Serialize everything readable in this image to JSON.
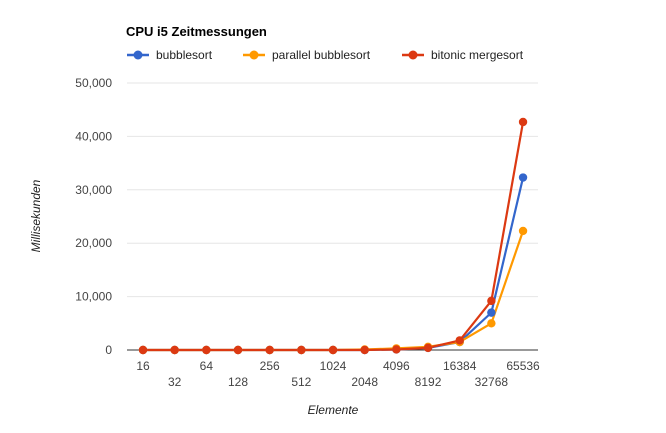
{
  "chart_data": {
    "type": "line",
    "title": "CPU i5 Zeitmessungen",
    "xlabel": "Elemente",
    "ylabel": "Millisekunden",
    "categories": [
      "16",
      "32",
      "64",
      "128",
      "256",
      "512",
      "1024",
      "2048",
      "4096",
      "8192",
      "16384",
      "32768",
      "65536"
    ],
    "ylim": [
      0,
      50000
    ],
    "yticks": [
      0,
      10000,
      20000,
      30000,
      40000,
      50000
    ],
    "ytick_labels": [
      "0",
      "10,000",
      "20,000",
      "30,000",
      "40,000",
      "50,000"
    ],
    "grid": true,
    "legend_position": "top",
    "series": [
      {
        "name": "bubblesort",
        "color": "#3366cc",
        "values": [
          0,
          0,
          0,
          0,
          0,
          0,
          0,
          0,
          100,
          400,
          1500,
          7000,
          32300
        ]
      },
      {
        "name": "parallel bubblesort",
        "color": "#ff9900",
        "values": [
          0,
          0,
          0,
          0,
          0,
          0,
          0,
          100,
          300,
          600,
          1500,
          5000,
          22300
        ]
      },
      {
        "name": "bitonic mergesort",
        "color": "#dc3912",
        "values": [
          0,
          0,
          0,
          0,
          0,
          0,
          0,
          0,
          100,
          400,
          1800,
          9200,
          42700
        ]
      }
    ]
  }
}
